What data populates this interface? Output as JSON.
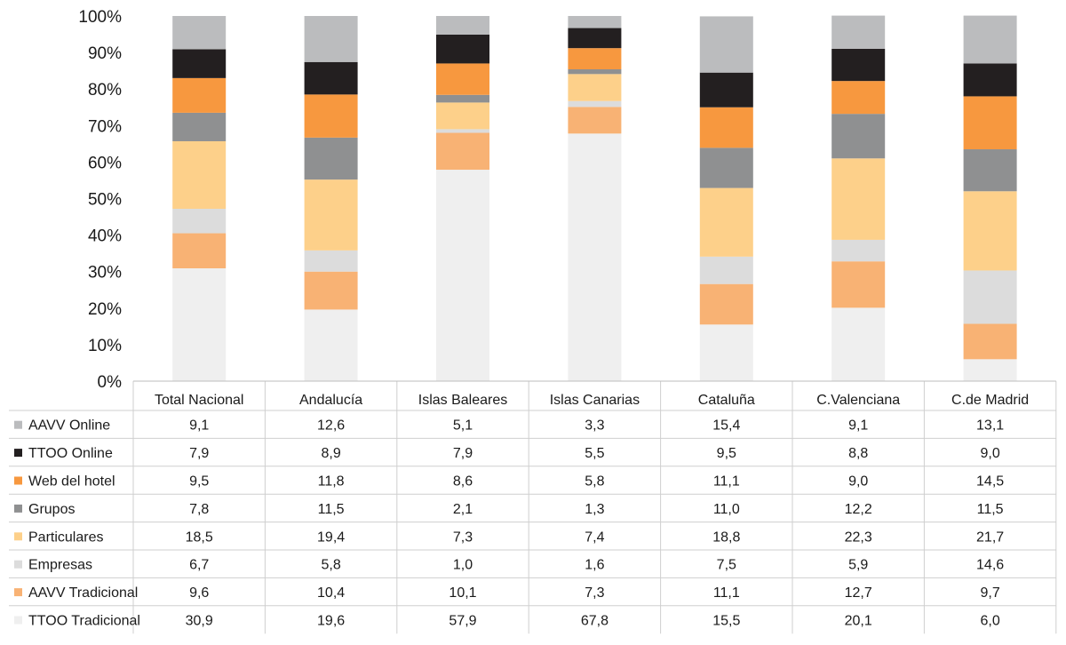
{
  "chart_data": {
    "type": "bar",
    "stacked": true,
    "normalized": true,
    "ylim": [
      0,
      100
    ],
    "yticks": [
      "0%",
      "10%",
      "20%",
      "30%",
      "40%",
      "50%",
      "60%",
      "70%",
      "80%",
      "90%",
      "100%"
    ],
    "categories": [
      "Total Nacional",
      "Andalucía",
      "Islas Baleares",
      "Islas Canarias",
      "Cataluña",
      "C.Valenciana",
      "C.de Madrid"
    ],
    "series": [
      {
        "name": "TTOO Tradicional",
        "color": "#efefef",
        "values": [
          30.9,
          19.6,
          57.9,
          67.8,
          15.5,
          20.1,
          6.0
        ],
        "labels": [
          "30,9",
          "19,6",
          "57,9",
          "67,8",
          "15,5",
          "20,1",
          "6,0"
        ]
      },
      {
        "name": "AAVV Tradicional",
        "color": "#f8b274",
        "values": [
          9.6,
          10.4,
          10.1,
          7.3,
          11.1,
          12.7,
          9.7
        ],
        "labels": [
          "9,6",
          "10,4",
          "10,1",
          "7,3",
          "11,1",
          "12,7",
          "9,7"
        ]
      },
      {
        "name": "Empresas",
        "color": "#dcdcdc",
        "values": [
          6.7,
          5.8,
          1.0,
          1.6,
          7.5,
          5.9,
          14.6
        ],
        "labels": [
          "6,7",
          "5,8",
          "1,0",
          "1,6",
          "7,5",
          "5,9",
          "14,6"
        ]
      },
      {
        "name": "Particulares",
        "color": "#fdd08a",
        "values": [
          18.5,
          19.4,
          7.3,
          7.4,
          18.8,
          22.3,
          21.7
        ],
        "labels": [
          "18,5",
          "19,4",
          "7,3",
          "7,4",
          "18,8",
          "22,3",
          "21,7"
        ]
      },
      {
        "name": "Grupos",
        "color": "#8f9091",
        "values": [
          7.8,
          11.5,
          2.1,
          1.3,
          11.0,
          12.2,
          11.5
        ],
        "labels": [
          "7,8",
          "11,5",
          "2,1",
          "1,3",
          "11,0",
          "12,2",
          "11,5"
        ]
      },
      {
        "name": "Web del hotel",
        "color": "#f7983f",
        "values": [
          9.5,
          11.8,
          8.6,
          5.8,
          11.1,
          9.0,
          14.5
        ],
        "labels": [
          "9,5",
          "11,8",
          "8,6",
          "5,8",
          "11,1",
          "9,0",
          "14,5"
        ]
      },
      {
        "name": "TTOO Online",
        "color": "#231f20",
        "values": [
          7.9,
          8.9,
          7.9,
          5.5,
          9.5,
          8.8,
          9.0
        ],
        "labels": [
          "7,9",
          "8,9",
          "7,9",
          "5,5",
          "9,5",
          "8,8",
          "9,0"
        ]
      },
      {
        "name": "AAVV Online",
        "color": "#bbbcbe",
        "values": [
          9.1,
          12.6,
          5.1,
          3.3,
          15.4,
          9.1,
          13.1
        ],
        "labels": [
          "9,1",
          "12,6",
          "5,1",
          "3,3",
          "15,4",
          "9,1",
          "13,1"
        ]
      }
    ],
    "table_row_order": [
      "AAVV Online",
      "TTOO Online",
      "Web del hotel",
      "Grupos",
      "Particulares",
      "Empresas",
      "AAVV Tradicional",
      "TTOO Tradicional"
    ],
    "grid": false,
    "legend": "data-table-below"
  }
}
